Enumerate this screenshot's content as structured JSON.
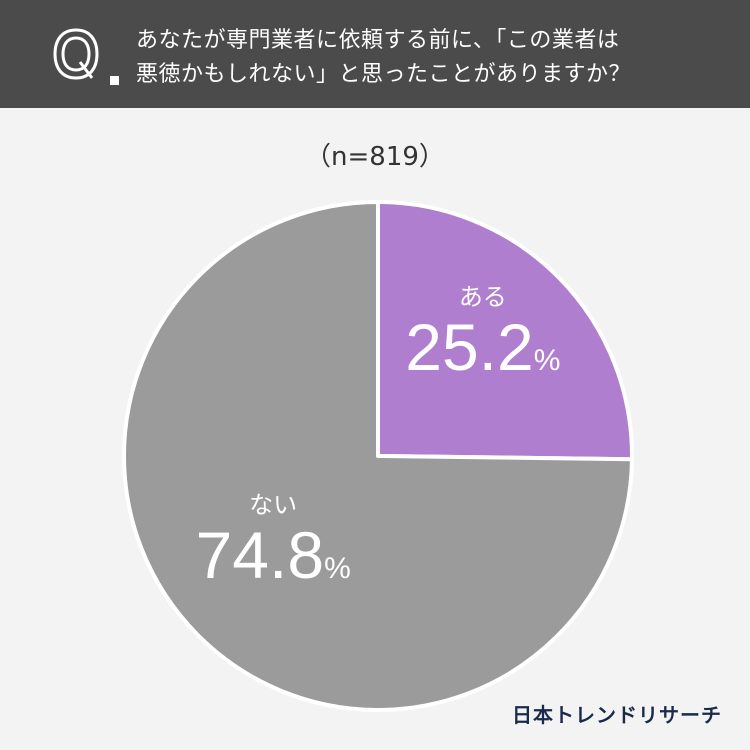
{
  "header": {
    "question_line1": "あなたが専門業者に依頼する前に、「この業者は",
    "question_line2": "悪徳かもしれない」と思ったことがありますか？",
    "bg_color": "#4b4b4b"
  },
  "sample_label": "（n=819）",
  "chart_data": {
    "type": "pie",
    "categories": [
      "ある",
      "ない"
    ],
    "values": [
      25.2,
      74.8
    ],
    "value_labels": [
      "25.2",
      "74.8"
    ],
    "percent_sign": "%",
    "colors": [
      "#b07ecf",
      "#9b9b9b"
    ],
    "start": "12 o'clock, clockwise"
  },
  "brand": "日本トレンドリサーチ"
}
